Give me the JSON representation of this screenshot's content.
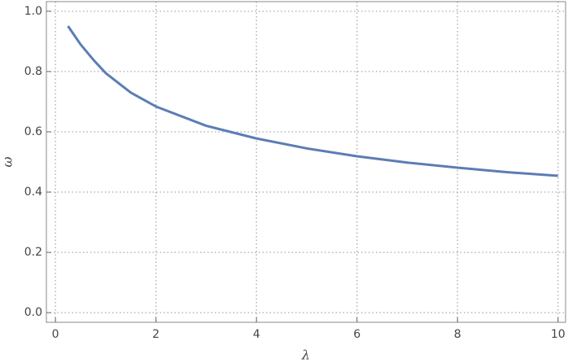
{
  "chart_data": {
    "type": "line",
    "x_label": "λ",
    "y_label": "ω",
    "x": [
      0.25,
      0.5,
      0.75,
      1,
      1.5,
      2,
      3,
      4,
      5,
      6,
      7,
      8,
      9,
      10
    ],
    "series": [
      {
        "color": "#5b7db5",
        "values": [
          0.951,
          0.89,
          0.84,
          0.795,
          0.73,
          0.684,
          0.62,
          0.578,
          0.545,
          0.519,
          0.498,
          0.481,
          0.466,
          0.454
        ]
      }
    ],
    "xlim": [
      -0.18,
      10.15
    ],
    "ylim": [
      -0.032,
      1.032
    ],
    "xticks": [
      0,
      2,
      4,
      6,
      8,
      10
    ],
    "yticks": [
      {
        "value": 0,
        "label": "0.0"
      },
      0.2,
      0.4,
      0.6,
      0.8,
      {
        "value": 1,
        "label": "1.0"
      }
    ],
    "grid": true
  }
}
